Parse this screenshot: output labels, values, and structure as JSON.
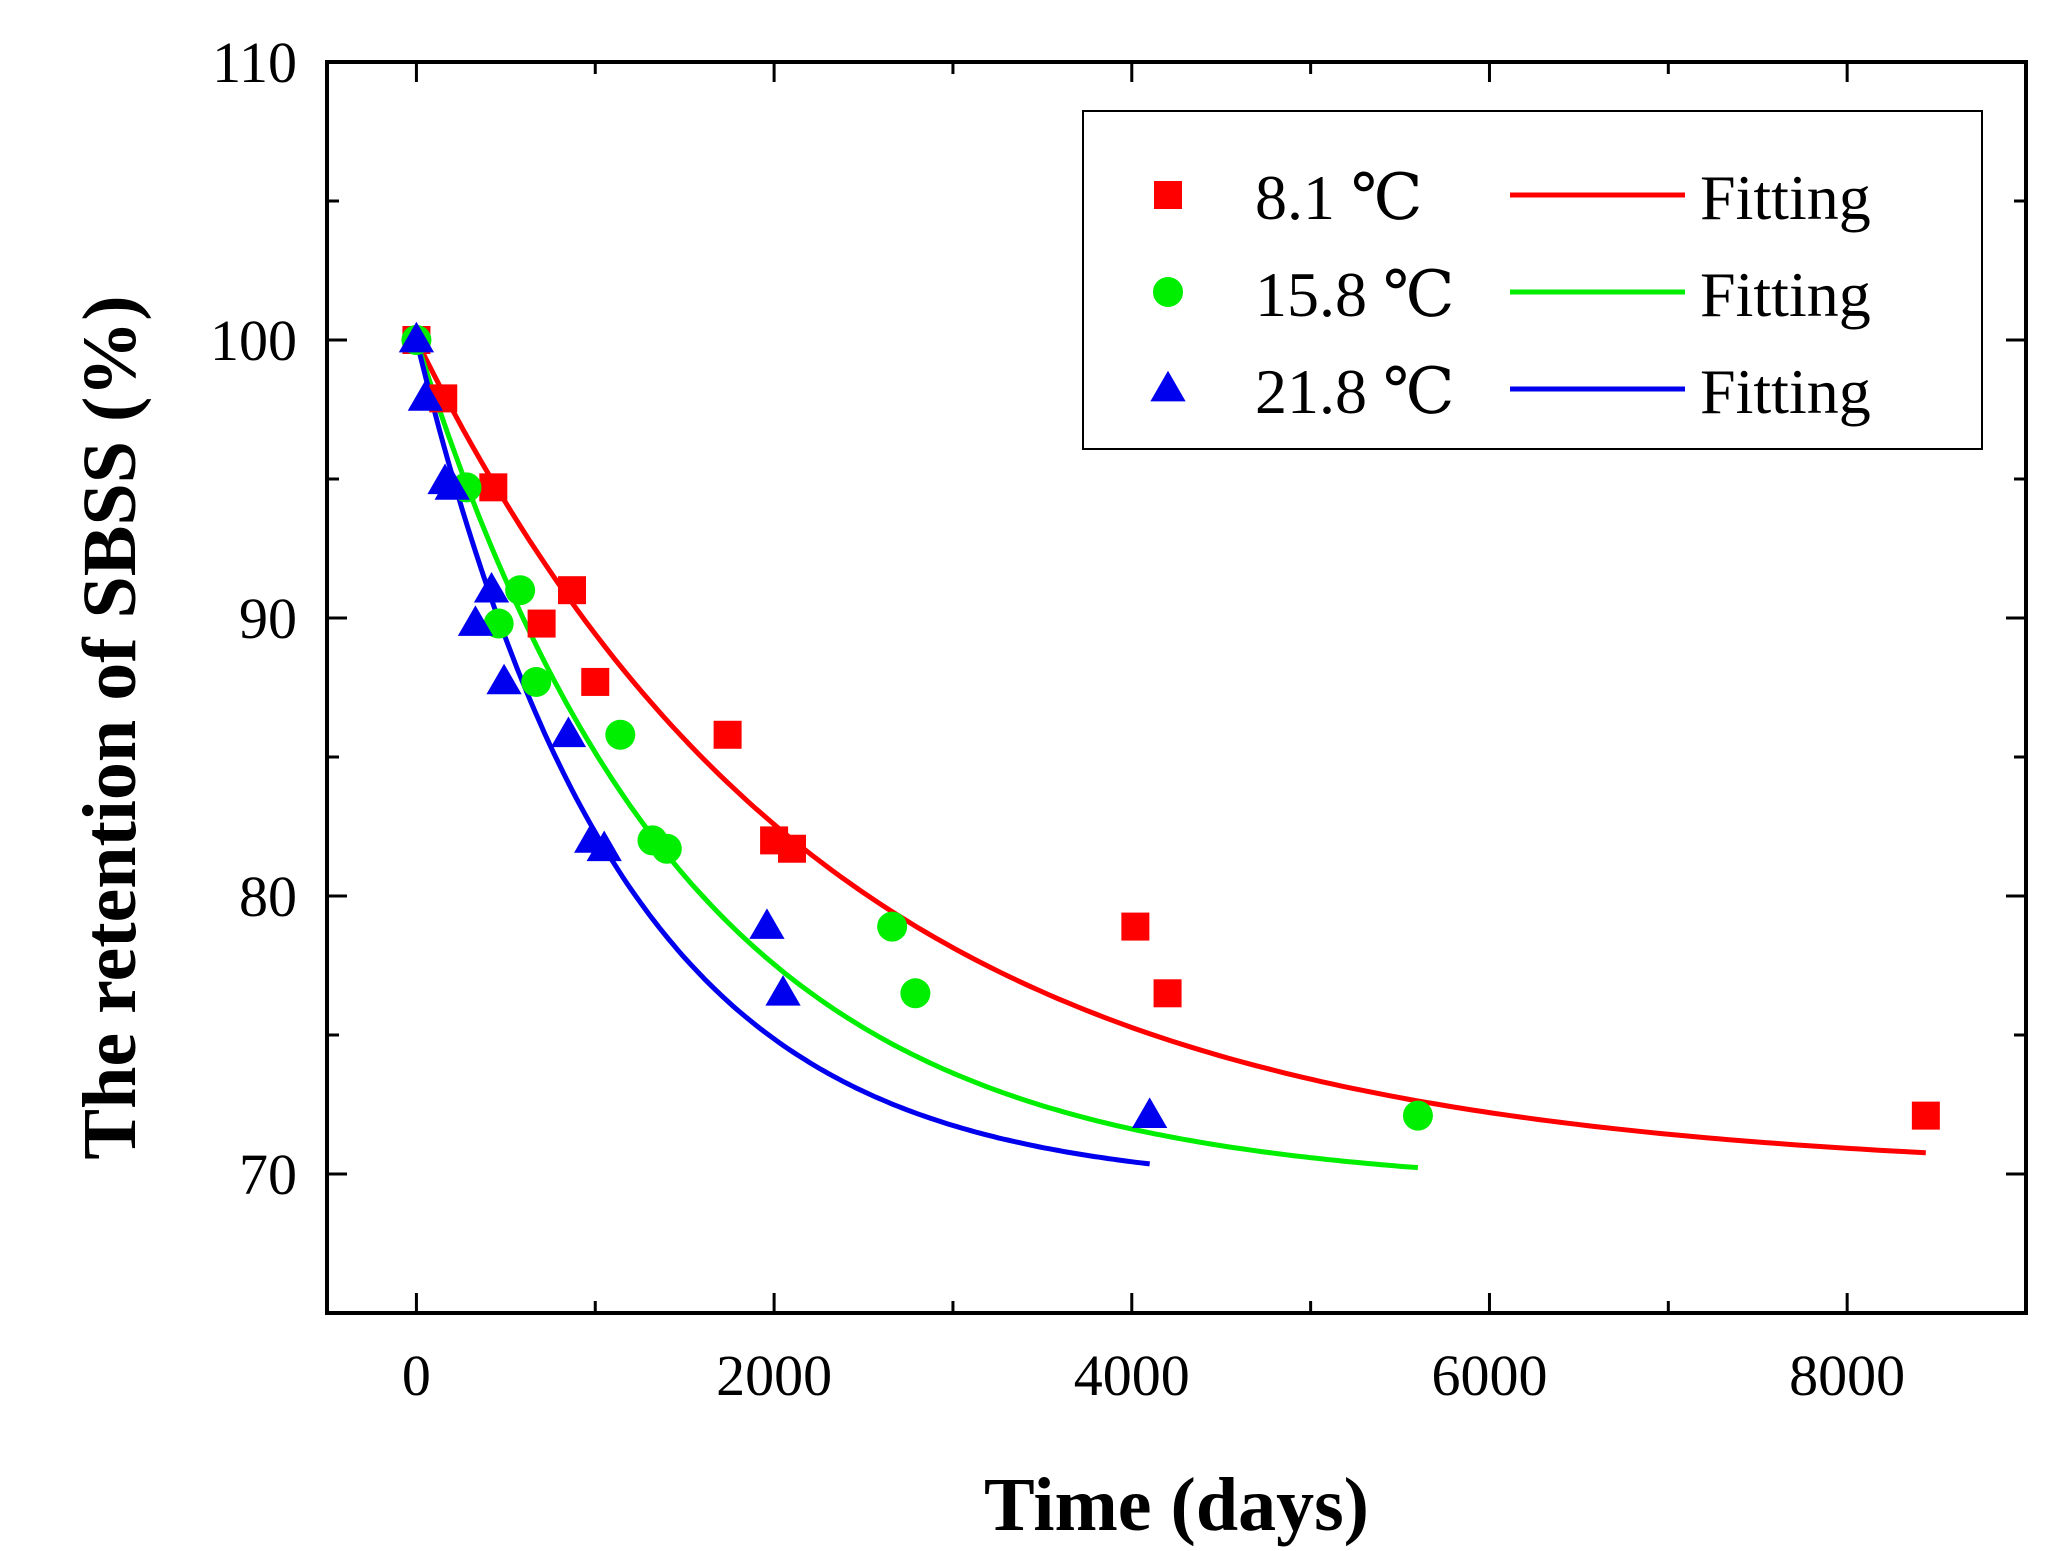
{
  "chart_data": {
    "type": "scatter",
    "title": "",
    "xlabel": "Time (days)",
    "ylabel": "The retention of SBSS (%)",
    "xlim": [
      -500,
      9000
    ],
    "ylim": [
      65,
      110
    ],
    "x_ticks": [
      0,
      2000,
      4000,
      6000,
      8000
    ],
    "x_tick_labels": [
      "0",
      "2000",
      "4000",
      "6000",
      "8000"
    ],
    "y_ticks": [
      70,
      80,
      90,
      100,
      110
    ],
    "y_tick_labels": [
      "70",
      "80",
      "90",
      "100",
      "110"
    ],
    "grid": false,
    "legend_position": "top-right",
    "series": [
      {
        "name": "8.1 ℃",
        "fit_label": "Fitting",
        "color": "#ff0000",
        "marker": "square",
        "x": [
          0,
          150,
          430,
          700,
          870,
          1000,
          1740,
          2000,
          2100,
          4020,
          4200,
          8440
        ],
        "y": [
          100,
          97.9,
          94.7,
          89.8,
          91.0,
          87.7,
          85.8,
          82.0,
          81.7,
          78.9,
          76.5,
          72.1
        ],
        "fit": {
          "model": "exponential",
          "y0": 70,
          "A": 30,
          "tau": 2300,
          "x_max": 8440
        }
      },
      {
        "name": "15.8 ℃",
        "fit_label": "Fitting",
        "color": "#00ee00",
        "marker": "circle",
        "x": [
          0,
          280,
          460,
          580,
          670,
          1140,
          1320,
          1400,
          2660,
          2790,
          5600
        ],
        "y": [
          100,
          94.7,
          89.8,
          91.0,
          87.7,
          85.8,
          82.0,
          81.7,
          78.9,
          76.5,
          72.1
        ],
        "fit": {
          "model": "exponential",
          "y0": 69.5,
          "A": 30.5,
          "tau": 1500,
          "x_max": 5600
        }
      },
      {
        "name": "21.8 ℃",
        "fit_label": "Fitting",
        "color": "#0000ee",
        "marker": "triangle",
        "x": [
          0,
          50,
          160,
          200,
          330,
          420,
          490,
          850,
          980,
          1050,
          1960,
          2050,
          4100
        ],
        "y": [
          100,
          97.9,
          94.9,
          94.7,
          89.8,
          91.0,
          87.7,
          85.8,
          82.0,
          81.7,
          78.9,
          76.5,
          72.1
        ],
        "fit": {
          "model": "exponential",
          "y0": 69.5,
          "A": 30.5,
          "tau": 1150,
          "x_max": 4100
        }
      }
    ]
  }
}
